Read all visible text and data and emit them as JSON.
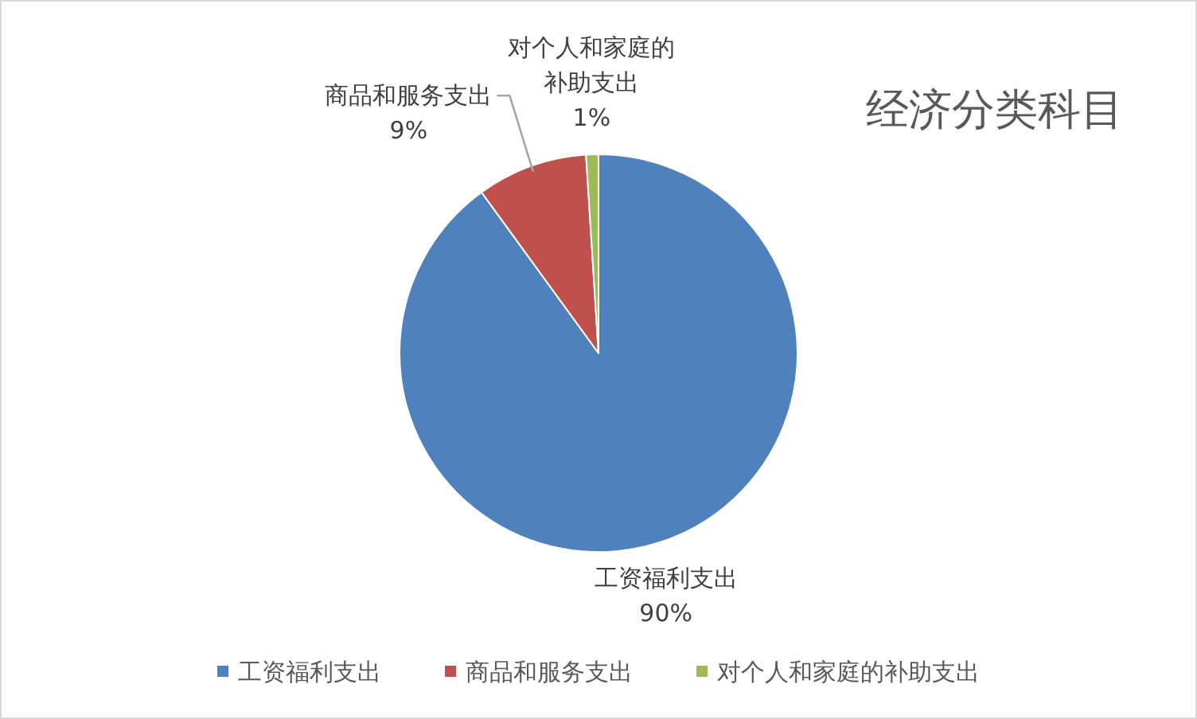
{
  "chart_data": {
    "type": "pie",
    "title": "经济分类科目",
    "categories": [
      "工资福利支出",
      "商品和服务支出",
      "对个人和家庭的补助支出"
    ],
    "values": [
      90,
      9,
      1
    ],
    "colors": [
      "#4f81bd",
      "#c0504d",
      "#9bbb59"
    ],
    "value_labels": [
      "90%",
      "9%",
      "1%"
    ],
    "legend": "bottom"
  }
}
